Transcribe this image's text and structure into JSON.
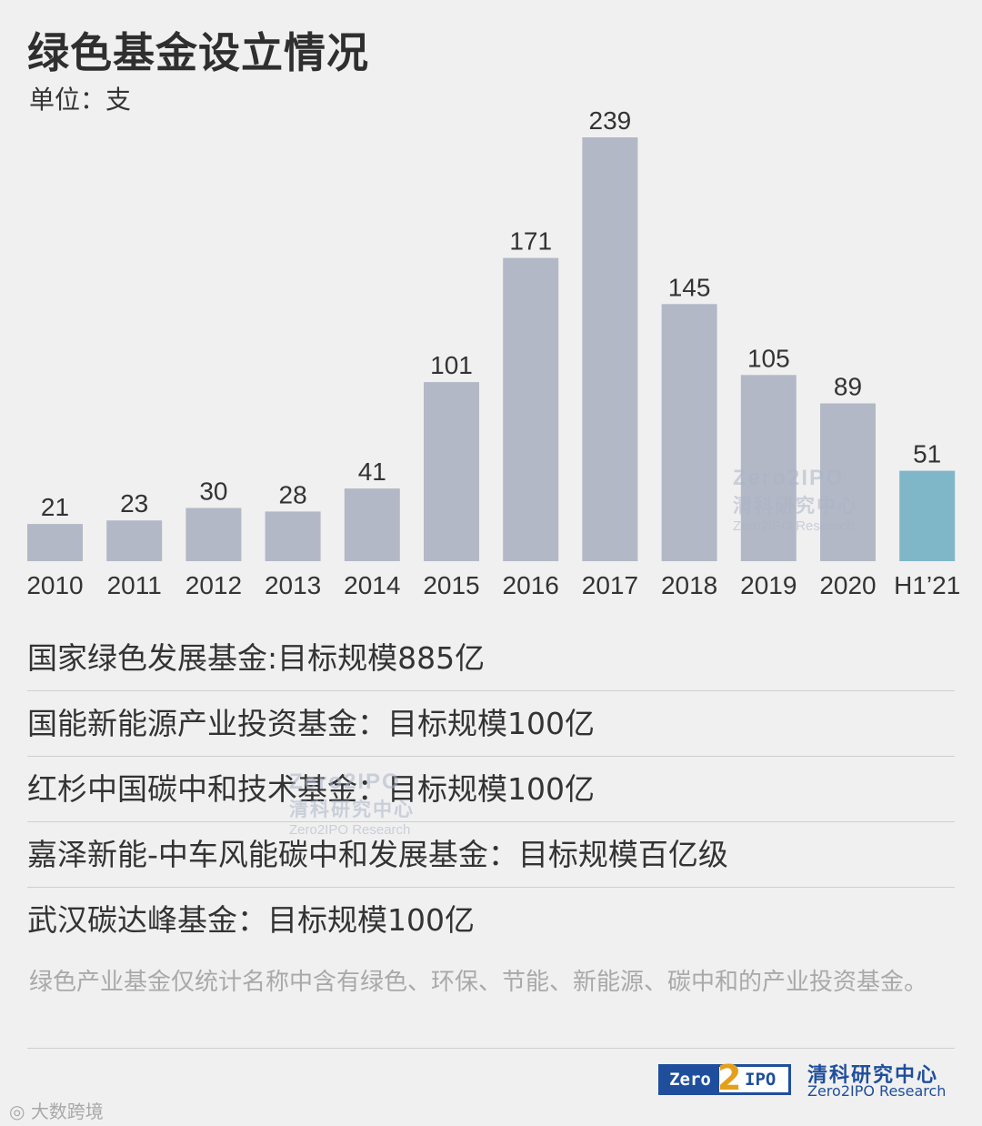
{
  "header": {
    "title": "绿色基金设立情况",
    "unit": "单位：支"
  },
  "chart_data": {
    "type": "bar",
    "title": "绿色基金设立情况",
    "ylabel": "单位：支",
    "categories": [
      "2010",
      "2011",
      "2012",
      "2013",
      "2014",
      "2015",
      "2016",
      "2017",
      "2018",
      "2019",
      "2020",
      "H1’21"
    ],
    "values": [
      21,
      23,
      30,
      28,
      41,
      101,
      171,
      239,
      145,
      105,
      89,
      51
    ],
    "colors": {
      "default": "#b2b8c5",
      "highlight": "#7fb7c9",
      "highlight_category": "H1’21",
      "label": "#333333"
    },
    "ylim": [
      0,
      239
    ],
    "grid": false,
    "legend": "none"
  },
  "funds": [
    "国家绿色发展基金:目标规模885亿",
    "国能新能源产业投资基金：目标规模100亿",
    "红杉中国碳中和技术基金：目标规模100亿",
    "嘉泽新能-中车风能碳中和发展基金：目标规模百亿级",
    "武汉碳达峰基金：目标规模100亿"
  ],
  "footnote": "绿色产业基金仅统计名称中含有绿色、环保、节能、新能源、碳中和的产业投资基金。",
  "watermark": {
    "mark": "Zero2IPO",
    "cn": "清科研究中心",
    "en": "Zero2IPO Research"
  },
  "logo": {
    "zero": "Zero",
    "two": "2",
    "ipo": "IPO",
    "cn": "清科研究中心",
    "en": "Zero2IPO Research"
  },
  "source_mark": "大数跨境"
}
